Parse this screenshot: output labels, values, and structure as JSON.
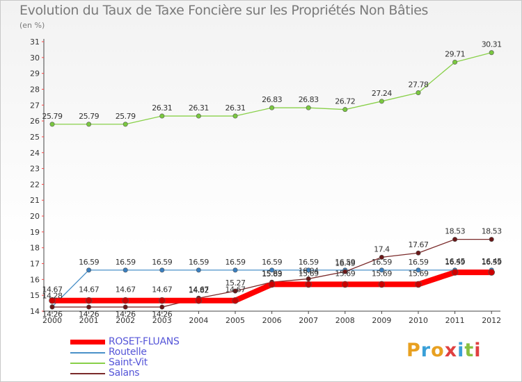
{
  "chart_data": {
    "type": "line",
    "title": "Evolution du Taux de Taxe Foncière sur les Propriétés Non Bâties",
    "ylabel": "(en %)",
    "xlabel": "",
    "categories": [
      "2000",
      "2001",
      "2002",
      "2003",
      "2004",
      "2005",
      "2006",
      "2007",
      "2008",
      "2009",
      "2010",
      "2011",
      "2012"
    ],
    "ylim": [
      14,
      31
    ],
    "yticks": [
      14,
      15,
      16,
      17,
      18,
      19,
      20,
      21,
      22,
      23,
      24,
      25,
      26,
      27,
      28,
      29,
      30,
      31
    ],
    "series": [
      {
        "name": "ROSET-FLUANS",
        "color": "#ff0000",
        "values": [
          14.67,
          14.67,
          14.67,
          14.67,
          14.67,
          14.67,
          15.69,
          15.69,
          15.69,
          15.69,
          15.69,
          16.45,
          16.45
        ]
      },
      {
        "name": "Routelle",
        "color": "#4a90c8",
        "values": [
          14.28,
          16.59,
          16.59,
          16.59,
          16.59,
          16.59,
          16.59,
          16.59,
          16.59,
          16.59,
          16.59,
          16.59,
          16.59
        ]
      },
      {
        "name": "Saint-Vit",
        "color": "#88d048",
        "values": [
          25.79,
          25.79,
          25.79,
          26.31,
          26.31,
          26.31,
          26.83,
          26.83,
          26.72,
          27.24,
          27.78,
          29.71,
          30.31
        ]
      },
      {
        "name": "Salans",
        "color": "#7a2a2a",
        "values": [
          14.26,
          14.26,
          14.26,
          14.26,
          14.82,
          15.27,
          15.83,
          16.04,
          16.49,
          17.4,
          17.67,
          18.53,
          18.53
        ]
      }
    ],
    "legend": "bottom-left"
  },
  "legend": [
    {
      "label": "ROSET-FLUANS"
    },
    {
      "label": "Routelle"
    },
    {
      "label": "Saint-Vit"
    },
    {
      "label": "Salans"
    }
  ],
  "logo": {
    "letters": [
      "P",
      "r",
      "o",
      "x",
      "i",
      "t",
      "i"
    ],
    "colors": [
      "#e8a020",
      "#3aa0d8",
      "#e8a020",
      "#e04040",
      "#3aa0d8",
      "#88c040",
      "#e04040"
    ]
  }
}
